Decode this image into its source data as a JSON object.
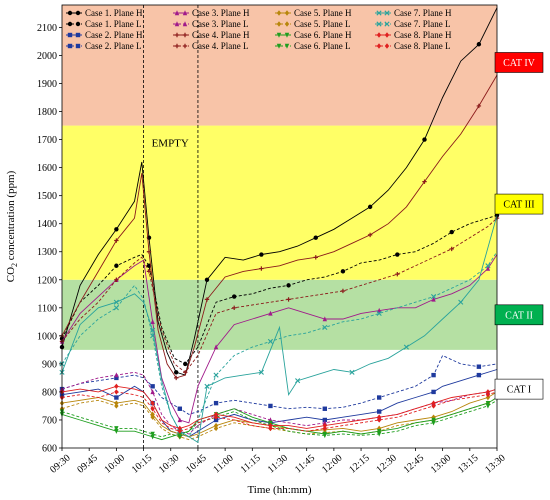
{
  "chart_data": {
    "type": "line",
    "title": "",
    "xlabel": "Time (hh:mm)",
    "ylabel": "CO2 concentration (ppm)",
    "ylim": [
      600,
      2180
    ],
    "y_ticks": [
      600,
      700,
      800,
      900,
      1000,
      1100,
      1200,
      1300,
      1400,
      1500,
      1600,
      1700,
      1800,
      1900,
      2000,
      2100
    ],
    "x_ticks": [
      "09:30",
      "09:45",
      "10:00",
      "10:15",
      "10:30",
      "10:45",
      "11:00",
      "11:15",
      "11:30",
      "11:45",
      "12:00",
      "12:15",
      "12:30",
      "12:45",
      "13:00",
      "13:15",
      "13:30"
    ],
    "x_range_minutes": [
      0,
      240
    ],
    "x_unit": "minutes after 09:30",
    "bands": [
      {
        "label": "CAT I",
        "from": 600,
        "to": 950,
        "color": "#ffffff",
        "label_bg": "#ffffff",
        "label_color": "#000000",
        "label_y": 810
      },
      {
        "label": "CAT II",
        "from": 950,
        "to": 1200,
        "color": "#b5e0a3",
        "label_bg": "#00b050",
        "label_color": "#ffffff",
        "label_y": 1075
      },
      {
        "label": "CAT III",
        "from": 1200,
        "to": 1750,
        "color": "#ffff66",
        "label_bg": "#ffff00",
        "label_color": "#000000",
        "label_y": 1470
      },
      {
        "label": "CAT IV",
        "from": 1750,
        "to": 2180,
        "color": "#f8c4a8",
        "label_bg": "#ff0000",
        "label_color": "#ffffff",
        "label_y": 1975
      }
    ],
    "annotation": {
      "text": "EMPTY",
      "x": 45,
      "y": 1690
    },
    "vlines": [
      45,
      75
    ],
    "series": [
      {
        "name": "Case 1. Plane H",
        "color": "#000000",
        "dash": "",
        "marker": "circle",
        "x": [
          0,
          10,
          20,
          30,
          40,
          44,
          48,
          53,
          58,
          63,
          68,
          73,
          80,
          90,
          100,
          110,
          120,
          130,
          140,
          150,
          160,
          170,
          180,
          190,
          200,
          210,
          220,
          230,
          240
        ],
        "y": [
          960,
          1180,
          1290,
          1380,
          1480,
          1620,
          1350,
          1050,
          940,
          870,
          860,
          990,
          1200,
          1280,
          1270,
          1290,
          1300,
          1320,
          1350,
          1380,
          1420,
          1460,
          1520,
          1600,
          1700,
          1850,
          1980,
          2040,
          2170
        ]
      },
      {
        "name": "Case 1. Plane L",
        "color": "#000000",
        "dash": "3,2",
        "marker": "circle",
        "x": [
          0,
          10,
          20,
          30,
          40,
          44,
          48,
          55,
          62,
          68,
          75,
          85,
          95,
          105,
          115,
          125,
          135,
          145,
          155,
          165,
          175,
          185,
          195,
          205,
          215,
          225,
          235,
          240
        ],
        "y": [
          990,
          1120,
          1180,
          1250,
          1280,
          1290,
          1250,
          1030,
          920,
          900,
          960,
          1120,
          1140,
          1150,
          1170,
          1180,
          1200,
          1210,
          1230,
          1260,
          1270,
          1290,
          1300,
          1330,
          1370,
          1400,
          1420,
          1430
        ]
      },
      {
        "name": "Case 2. Plane H",
        "color": "#1f3a9e",
        "dash": "",
        "marker": "square",
        "x": [
          0,
          10,
          20,
          30,
          40,
          45,
          50,
          55,
          60,
          65,
          70,
          75,
          85,
          95,
          105,
          115,
          125,
          135,
          145,
          155,
          165,
          175,
          185,
          195,
          205,
          210,
          220,
          230,
          240
        ],
        "y": [
          790,
          800,
          810,
          780,
          820,
          800,
          760,
          700,
          660,
          650,
          640,
          660,
          700,
          720,
          700,
          690,
          700,
          710,
          700,
          710,
          720,
          730,
          760,
          780,
          800,
          820,
          840,
          860,
          880
        ]
      },
      {
        "name": "Case 2. Plane L",
        "color": "#1f3a9e",
        "dash": "3,2",
        "marker": "square",
        "x": [
          0,
          10,
          20,
          30,
          40,
          45,
          50,
          55,
          60,
          65,
          70,
          75,
          85,
          95,
          105,
          115,
          125,
          135,
          145,
          155,
          165,
          175,
          185,
          195,
          205,
          210,
          220,
          230,
          240
        ],
        "y": [
          810,
          830,
          840,
          850,
          860,
          850,
          820,
          780,
          760,
          740,
          720,
          730,
          760,
          770,
          760,
          750,
          740,
          745,
          740,
          745,
          760,
          780,
          800,
          820,
          860,
          930,
          900,
          890,
          900
        ]
      },
      {
        "name": "Case 3. Plane H",
        "color": "#a01a8a",
        "dash": "",
        "marker": "triangle",
        "x": [
          0,
          10,
          20,
          30,
          40,
          45,
          50,
          55,
          60,
          65,
          70,
          75,
          85,
          95,
          105,
          115,
          125,
          135,
          145,
          155,
          165,
          175,
          185,
          195,
          205,
          215,
          225,
          235,
          240
        ],
        "y": [
          980,
          1080,
          1140,
          1200,
          1250,
          1270,
          1050,
          850,
          760,
          700,
          690,
          820,
          960,
          1040,
          1060,
          1080,
          1100,
          1080,
          1060,
          1060,
          1080,
          1090,
          1100,
          1100,
          1130,
          1150,
          1180,
          1240,
          1290
        ]
      },
      {
        "name": "Case 3. Plane L",
        "color": "#a01a8a",
        "dash": "3,2",
        "marker": "triangle",
        "x": [
          0,
          10,
          20,
          30,
          40,
          45,
          50,
          55,
          60,
          65,
          70,
          75,
          85,
          95,
          105,
          115,
          125,
          135,
          145,
          155,
          165,
          175,
          185,
          195,
          205,
          215,
          225,
          235,
          240
        ],
        "y": [
          810,
          830,
          850,
          860,
          870,
          860,
          800,
          720,
          680,
          660,
          650,
          680,
          720,
          740,
          720,
          700,
          690,
          680,
          690,
          700,
          700,
          710,
          720,
          740,
          760,
          770,
          790,
          800,
          810
        ]
      },
      {
        "name": "Case 4. Plane H",
        "color": "#8b1a1a",
        "dash": "",
        "marker": "plus",
        "x": [
          0,
          10,
          20,
          30,
          40,
          44,
          48,
          53,
          58,
          63,
          68,
          73,
          80,
          90,
          100,
          110,
          120,
          130,
          140,
          150,
          160,
          170,
          180,
          190,
          200,
          210,
          220,
          230,
          240
        ],
        "y": [
          1000,
          1120,
          1230,
          1340,
          1420,
          1580,
          1300,
          1020,
          900,
          850,
          860,
          960,
          1130,
          1210,
          1230,
          1240,
          1250,
          1270,
          1280,
          1300,
          1330,
          1360,
          1400,
          1460,
          1550,
          1640,
          1720,
          1820,
          1930
        ]
      },
      {
        "name": "Case 4. Plane L",
        "color": "#8b1a1a",
        "dash": "3,2",
        "marker": "plus",
        "x": [
          0,
          10,
          20,
          30,
          40,
          44,
          48,
          55,
          62,
          68,
          75,
          85,
          95,
          105,
          115,
          125,
          135,
          145,
          155,
          165,
          175,
          185,
          195,
          205,
          215,
          225,
          235,
          240
        ],
        "y": [
          980,
          1060,
          1120,
          1200,
          1260,
          1280,
          1230,
          1020,
          900,
          870,
          930,
          1080,
          1100,
          1110,
          1120,
          1130,
          1140,
          1150,
          1160,
          1180,
          1200,
          1220,
          1250,
          1280,
          1310,
          1350,
          1390,
          1420
        ]
      },
      {
        "name": "Case 5. Plane H",
        "color": "#b8860b",
        "dash": "",
        "marker": "diamond",
        "x": [
          0,
          10,
          20,
          30,
          40,
          45,
          50,
          55,
          60,
          65,
          70,
          75,
          85,
          95,
          105,
          115,
          125,
          135,
          145,
          155,
          165,
          175,
          185,
          195,
          205,
          215,
          225,
          235,
          240
        ],
        "y": [
          760,
          770,
          780,
          760,
          770,
          760,
          720,
          680,
          660,
          650,
          640,
          650,
          680,
          700,
          690,
          680,
          670,
          660,
          665,
          670,
          660,
          670,
          690,
          700,
          710,
          730,
          760,
          780,
          800
        ]
      },
      {
        "name": "Case 5. Plane L",
        "color": "#b8860b",
        "dash": "3,2",
        "marker": "diamond",
        "x": [
          0,
          10,
          20,
          30,
          40,
          45,
          50,
          55,
          60,
          65,
          70,
          75,
          85,
          95,
          105,
          115,
          125,
          135,
          145,
          155,
          165,
          175,
          185,
          195,
          205,
          215,
          225,
          235,
          240
        ],
        "y": [
          740,
          760,
          770,
          750,
          760,
          750,
          710,
          670,
          650,
          640,
          630,
          640,
          670,
          690,
          680,
          670,
          660,
          650,
          655,
          660,
          650,
          660,
          680,
          690,
          700,
          720,
          740,
          760,
          780
        ]
      },
      {
        "name": "Case 6. Plane H",
        "color": "#1e9e1e",
        "dash": "",
        "marker": "triangle-down",
        "x": [
          0,
          10,
          20,
          30,
          40,
          45,
          50,
          55,
          60,
          65,
          70,
          75,
          85,
          95,
          105,
          115,
          125,
          135,
          145,
          155,
          165,
          175,
          185,
          195,
          205,
          215,
          225,
          235,
          240
        ],
        "y": [
          720,
          700,
          680,
          660,
          660,
          650,
          640,
          630,
          640,
          650,
          660,
          700,
          720,
          740,
          710,
          690,
          670,
          660,
          650,
          660,
          650,
          660,
          670,
          690,
          700,
          720,
          740,
          760,
          780
        ]
      },
      {
        "name": "Case 6. Plane L",
        "color": "#1e9e1e",
        "dash": "3,2",
        "marker": "triangle-down",
        "x": [
          0,
          10,
          20,
          30,
          40,
          45,
          50,
          55,
          60,
          65,
          70,
          75,
          85,
          95,
          105,
          115,
          125,
          135,
          145,
          155,
          165,
          175,
          185,
          195,
          205,
          215,
          225,
          235,
          240
        ],
        "y": [
          730,
          710,
          690,
          670,
          670,
          660,
          650,
          640,
          650,
          640,
          660,
          690,
          710,
          730,
          700,
          680,
          660,
          650,
          645,
          650,
          645,
          650,
          660,
          680,
          690,
          710,
          730,
          750,
          770
        ]
      },
      {
        "name": "Case 7. Plane H",
        "color": "#2aa39c",
        "dash": "",
        "marker": "x",
        "x": [
          0,
          10,
          20,
          30,
          40,
          45,
          50,
          55,
          60,
          65,
          70,
          75,
          80,
          90,
          100,
          110,
          120,
          125,
          130,
          140,
          150,
          160,
          170,
          180,
          190,
          200,
          210,
          220,
          230,
          240
        ],
        "y": [
          870,
          1040,
          1100,
          1120,
          1150,
          1120,
          1020,
          840,
          720,
          660,
          640,
          620,
          820,
          850,
          860,
          870,
          1030,
          790,
          840,
          860,
          880,
          870,
          900,
          920,
          960,
          1000,
          1060,
          1120,
          1200,
          1430
        ]
      },
      {
        "name": "Case 7. Plane L",
        "color": "#2aa39c",
        "dash": "3,2",
        "marker": "x",
        "x": [
          0,
          10,
          20,
          30,
          40,
          45,
          50,
          55,
          60,
          65,
          70,
          75,
          85,
          95,
          105,
          115,
          125,
          135,
          145,
          155,
          165,
          175,
          185,
          195,
          205,
          215,
          225,
          235,
          240
        ],
        "y": [
          900,
          1000,
          1060,
          1100,
          1180,
          1130,
          1000,
          820,
          720,
          660,
          640,
          700,
          860,
          930,
          960,
          980,
          1000,
          1010,
          1030,
          1050,
          1060,
          1080,
          1100,
          1120,
          1140,
          1170,
          1200,
          1250,
          1300
        ]
      },
      {
        "name": "Case 8. Plane H",
        "color": "#e02020",
        "dash": "",
        "marker": "diamond",
        "x": [
          0,
          10,
          20,
          30,
          40,
          45,
          50,
          55,
          60,
          65,
          70,
          75,
          85,
          95,
          105,
          115,
          125,
          135,
          145,
          155,
          165,
          175,
          185,
          195,
          205,
          215,
          225,
          235,
          240
        ],
        "y": [
          800,
          810,
          800,
          820,
          810,
          800,
          760,
          700,
          680,
          670,
          680,
          700,
          720,
          710,
          690,
          680,
          680,
          670,
          680,
          690,
          700,
          710,
          720,
          740,
          760,
          780,
          790,
          800,
          810
        ]
      },
      {
        "name": "Case 8. Plane L",
        "color": "#e02020",
        "dash": "3,2",
        "marker": "diamond",
        "x": [
          0,
          10,
          20,
          30,
          40,
          45,
          50,
          55,
          60,
          65,
          70,
          75,
          85,
          95,
          105,
          115,
          125,
          135,
          145,
          155,
          165,
          175,
          185,
          195,
          205,
          215,
          225,
          235,
          240
        ],
        "y": [
          780,
          790,
          780,
          800,
          790,
          780,
          740,
          690,
          670,
          660,
          670,
          690,
          710,
          700,
          680,
          670,
          670,
          660,
          670,
          680,
          690,
          700,
          710,
          730,
          750,
          770,
          780,
          790,
          800
        ]
      }
    ]
  }
}
